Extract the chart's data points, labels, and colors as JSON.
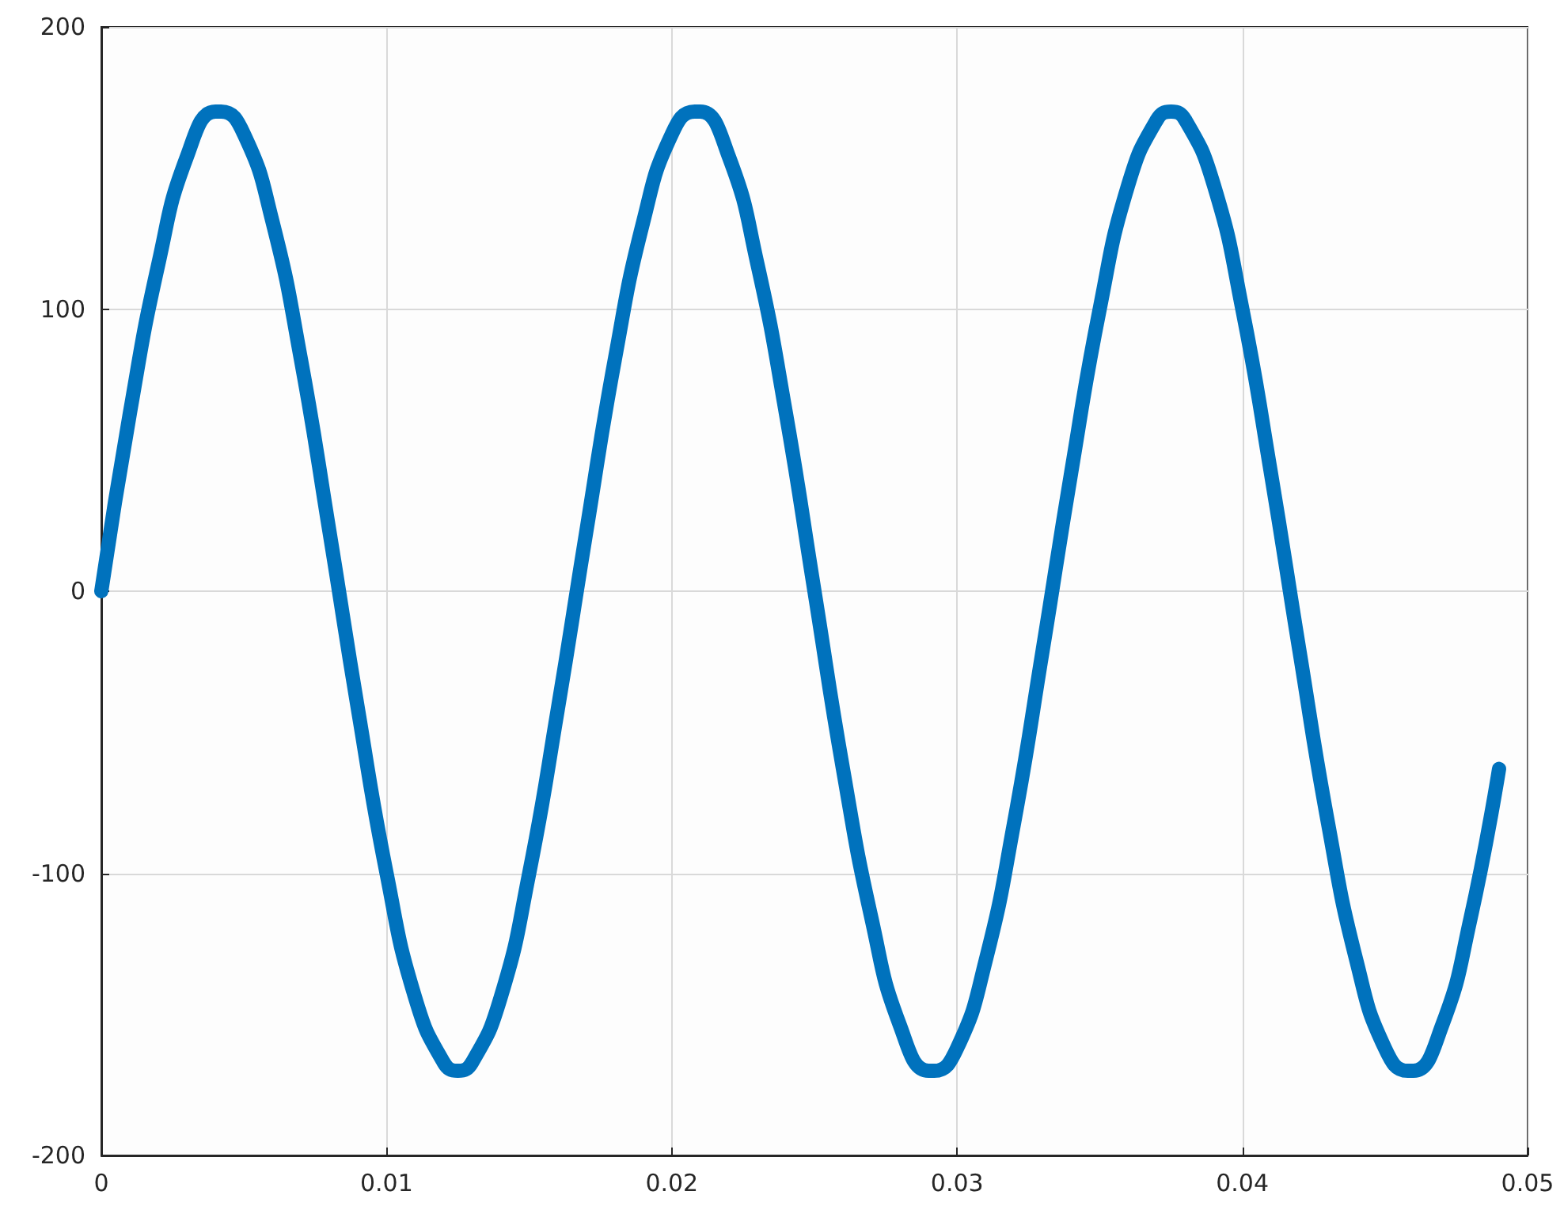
{
  "chart_data": {
    "type": "line",
    "x": [
      0,
      0.001,
      0.002,
      0.003,
      0.004,
      0.0042,
      0.005,
      0.006,
      0.007,
      0.008,
      0.009,
      0.01,
      0.011,
      0.012,
      0.0125,
      0.013,
      0.014,
      0.015,
      0.016,
      0.017,
      0.018,
      0.019,
      0.02,
      0.0208,
      0.021,
      0.022,
      0.023,
      0.024,
      0.025,
      0.026,
      0.027,
      0.028,
      0.029,
      0.0292,
      0.03,
      0.031,
      0.032,
      0.033,
      0.034,
      0.035,
      0.036,
      0.037,
      0.0375,
      0.038,
      0.039,
      0.04,
      0.041,
      0.042,
      0.043,
      0.044,
      0.045,
      0.0458,
      0.046,
      0.047,
      0.048,
      0.049
    ],
    "series": [
      {
        "color": "#0072bd",
        "values": [
          0,
          63,
          116,
          154,
          170,
          170,
          162,
          131,
          82,
          21,
          -42,
          -100,
          -144,
          -167,
          -170,
          -167,
          -144,
          -100,
          -42,
          21,
          82,
          131,
          162,
          170,
          170,
          154,
          116,
          63,
          0,
          -63,
          -116,
          -154,
          -170,
          -170,
          -162,
          -131,
          -82,
          -21,
          42,
          100,
          144,
          167,
          170,
          167,
          144,
          100,
          42,
          -21,
          -82,
          -131,
          -162,
          -170,
          -170,
          -154,
          -116,
          -63
        ]
      }
    ],
    "xlim": [
      0,
      0.05
    ],
    "xticks": [
      0,
      0.01,
      0.02,
      0.03,
      0.04,
      0.05
    ],
    "ylim": [
      -200,
      200
    ],
    "yticks": [
      -200,
      -100,
      0,
      100,
      200
    ],
    "grid": true,
    "line_style": "solid"
  }
}
